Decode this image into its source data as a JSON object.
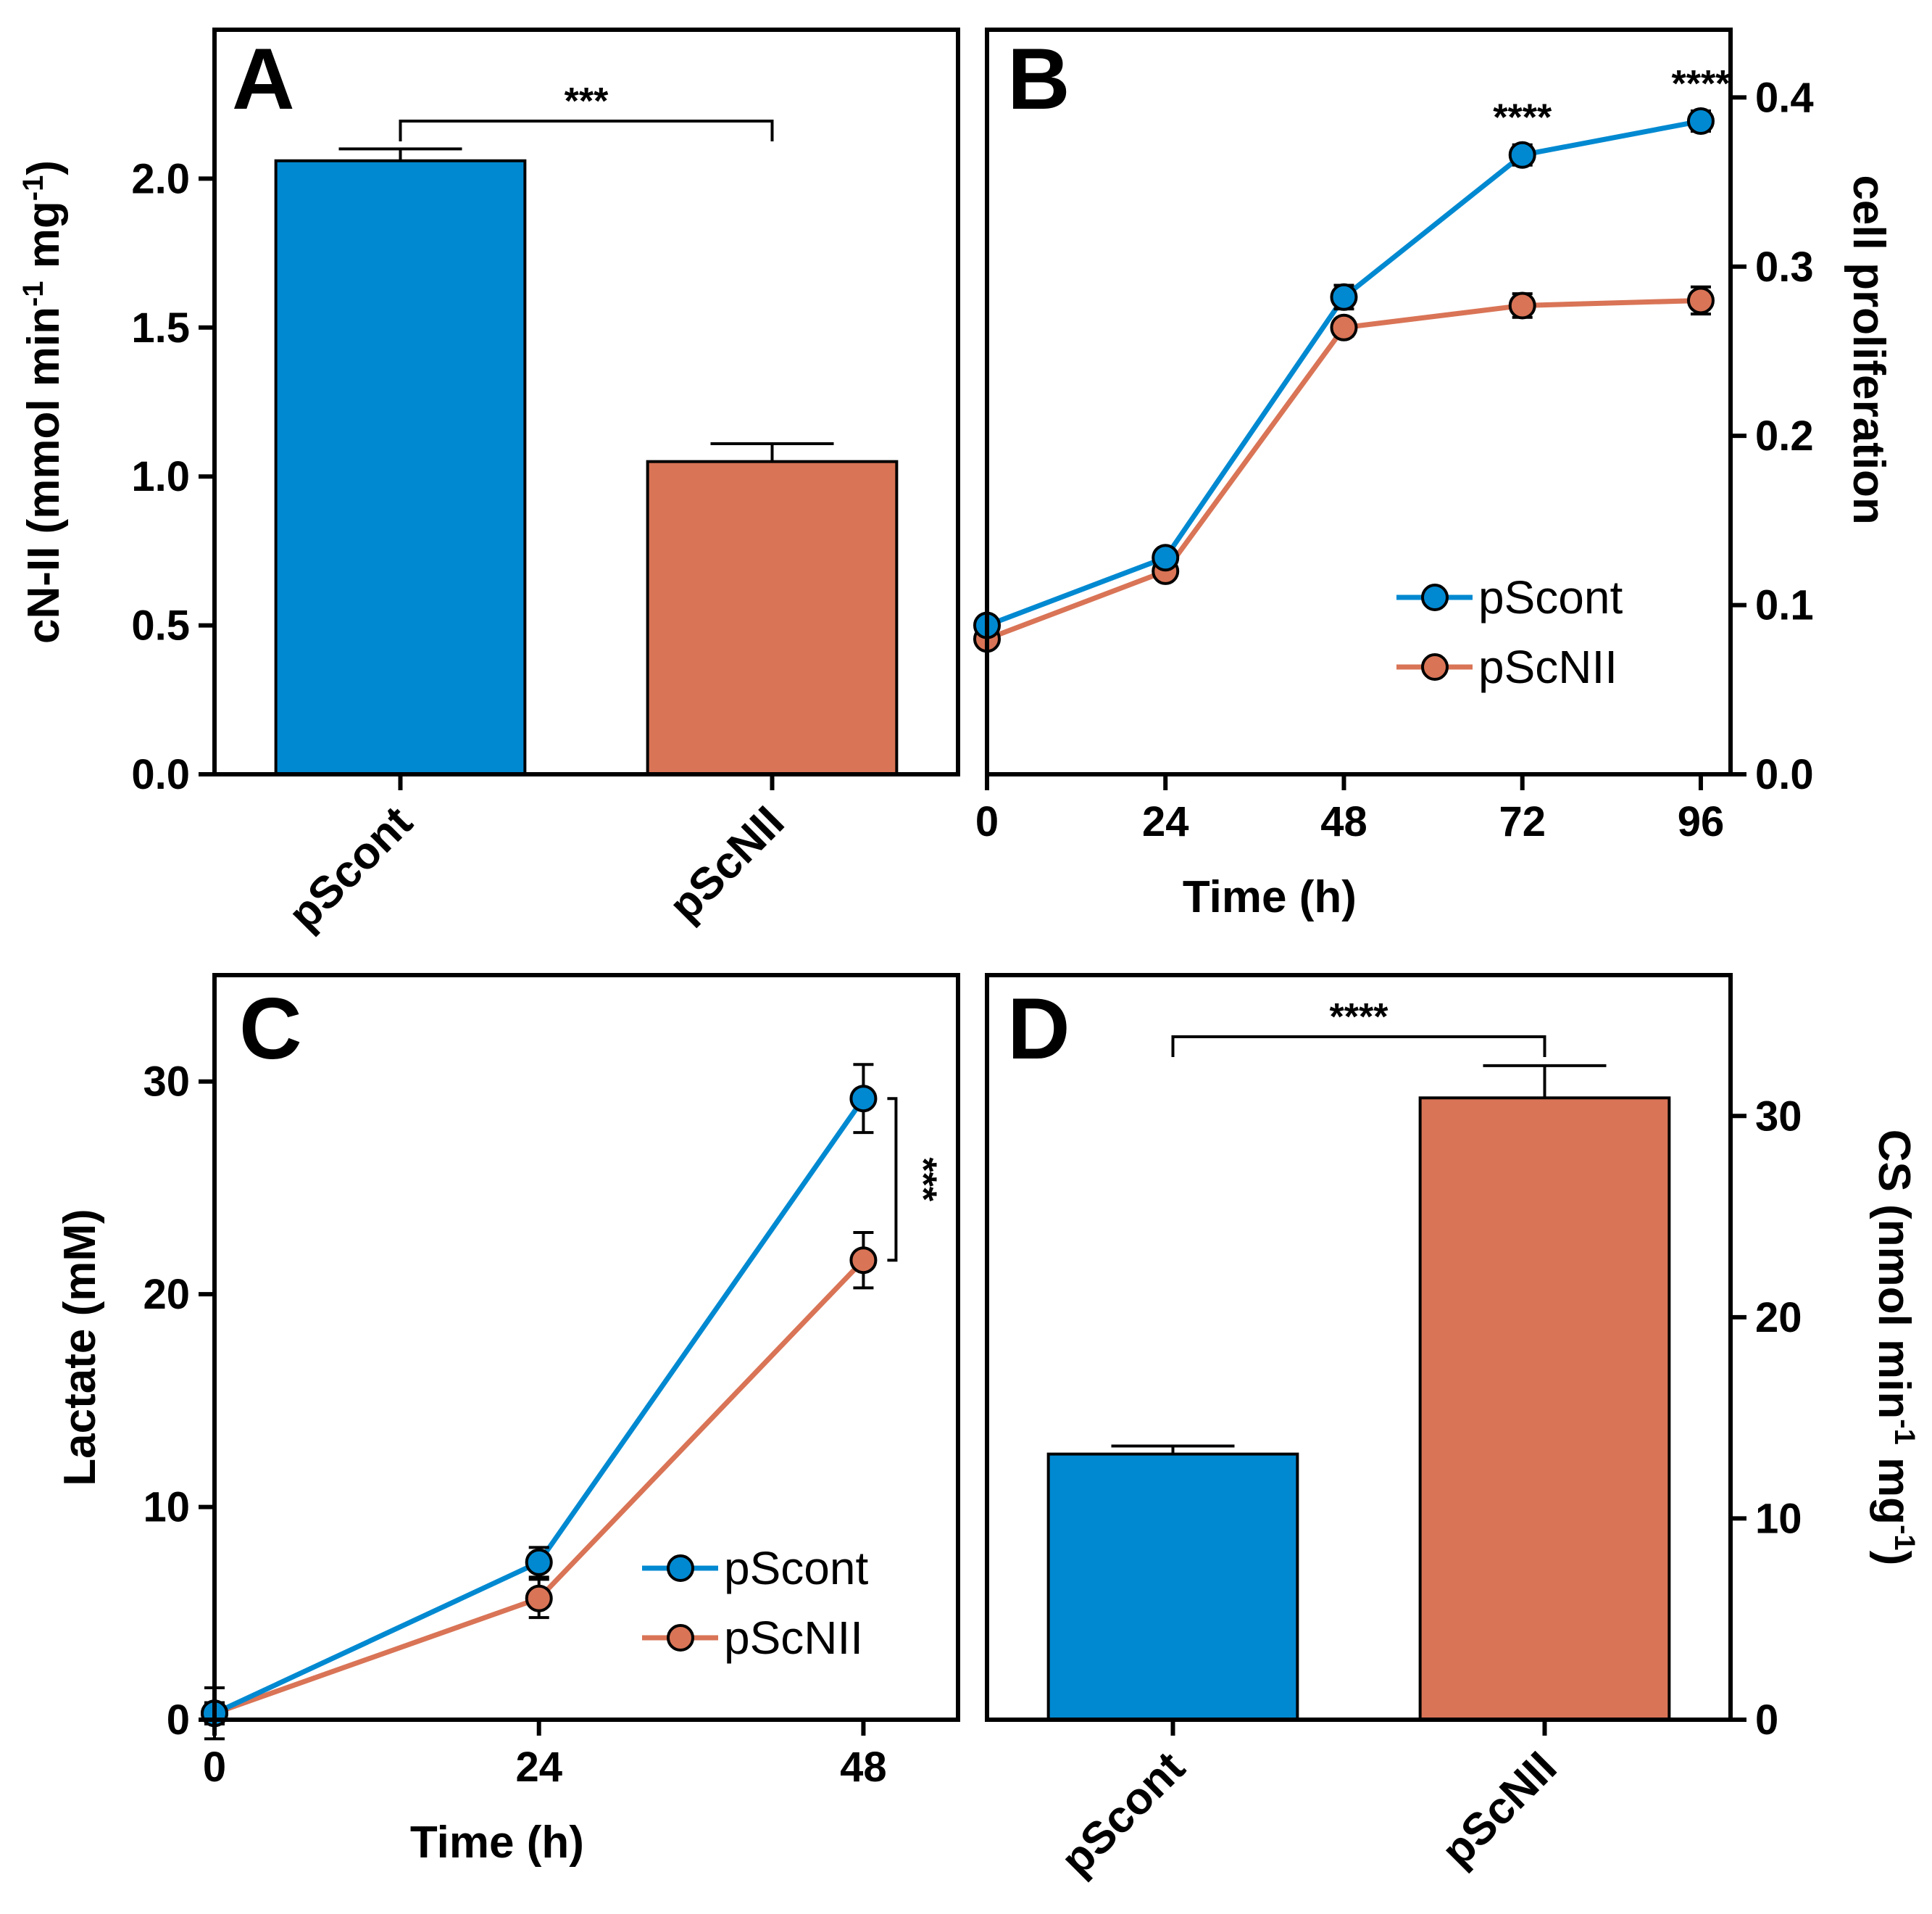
{
  "colors": {
    "pScont": "#0089d1",
    "pScNII": "#d97456",
    "axis": "#000000"
  },
  "chart_data": [
    {
      "panel": "A",
      "type": "bar",
      "ylabel_parts": [
        "cN-II (mmol min",
        "-1",
        " mg",
        "-1",
        ")"
      ],
      "ylim": [
        0,
        2.5
      ],
      "yticks": [
        0.0,
        0.5,
        1.0,
        1.5,
        2.0
      ],
      "ytick_labels": [
        "0.0",
        "0.5",
        "1.0",
        "1.5",
        "2.0"
      ],
      "categories": [
        "pScont",
        "pScNII"
      ],
      "values": [
        2.06,
        1.05
      ],
      "errors": [
        0.04,
        0.06
      ],
      "significance": {
        "text": "***",
        "between": [
          "pScont",
          "pScNII"
        ]
      }
    },
    {
      "panel": "B",
      "type": "line",
      "xlabel": "Time (h)",
      "ylabel": "cell proliferation",
      "y_axis_side": "right",
      "xlim": [
        0,
        100
      ],
      "ylim": [
        0,
        0.44
      ],
      "xticks": [
        0,
        24,
        48,
        72,
        96
      ],
      "xtick_labels": [
        "0",
        "24",
        "48",
        "72",
        "96"
      ],
      "yticks": [
        0.0,
        0.1,
        0.2,
        0.3,
        0.4
      ],
      "ytick_labels": [
        "0.0",
        "0.1",
        "0.2",
        "0.3",
        "0.4"
      ],
      "x": [
        0,
        24,
        48,
        72,
        96
      ],
      "series": [
        {
          "name": "pScont",
          "values": [
            0.088,
            0.128,
            0.282,
            0.366,
            0.386
          ],
          "errors": [
            0.004,
            0.004,
            0.007,
            0.006,
            0.006
          ]
        },
        {
          "name": "pScNII",
          "values": [
            0.08,
            0.12,
            0.264,
            0.277,
            0.28
          ],
          "errors": [
            0.004,
            0.004,
            0.005,
            0.007,
            0.008
          ]
        }
      ],
      "annotations": [
        {
          "x": 72,
          "text": "****"
        },
        {
          "x": 96,
          "text": "****"
        }
      ],
      "legend": {
        "position": "center-right",
        "entries": [
          "pScont",
          "pScNII"
        ]
      }
    },
    {
      "panel": "C",
      "type": "line",
      "xlabel": "Time (h)",
      "ylabel": "Lactate (mM)",
      "xlim": [
        0,
        55
      ],
      "ylim": [
        0,
        35
      ],
      "xticks": [
        0,
        24,
        48
      ],
      "xtick_labels": [
        "0",
        "24",
        "48"
      ],
      "yticks": [
        0,
        10,
        20,
        30
      ],
      "ytick_labels": [
        "0",
        "10",
        "20",
        "30"
      ],
      "x": [
        0,
        24,
        48
      ],
      "series": [
        {
          "name": "pScont",
          "values": [
            0.3,
            7.4,
            29.2
          ],
          "errors": [
            1.2,
            0.7,
            1.6
          ]
        },
        {
          "name": "pScNII",
          "values": [
            0.3,
            5.7,
            21.6
          ],
          "errors": [
            0.5,
            0.9,
            1.3
          ]
        }
      ],
      "significance": {
        "text": "***",
        "at_x": 48
      },
      "legend": {
        "position": "bottom-right",
        "entries": [
          "pScont",
          "pScNII"
        ]
      }
    },
    {
      "panel": "D",
      "type": "bar",
      "ylabel_parts": [
        "CS (nmol min",
        "-1",
        " mg",
        "-1",
        ")"
      ],
      "y_axis_side": "right",
      "ylim": [
        0,
        37
      ],
      "yticks": [
        0,
        10,
        20,
        30
      ],
      "ytick_labels": [
        "0",
        "10",
        "20",
        "30"
      ],
      "categories": [
        "pScont",
        "pScNII"
      ],
      "values": [
        13.2,
        30.9
      ],
      "errors": [
        0.4,
        1.6
      ],
      "significance": {
        "text": "****",
        "between": [
          "pScont",
          "pScNII"
        ]
      }
    }
  ]
}
